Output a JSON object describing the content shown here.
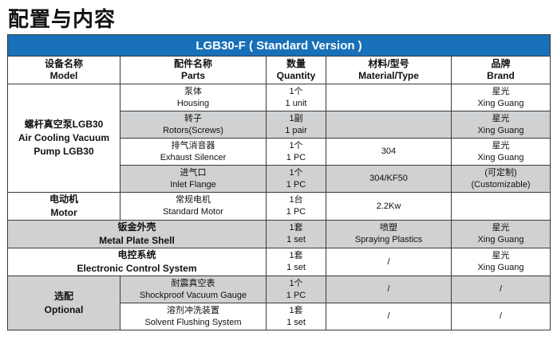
{
  "heading": "配置与内容",
  "table_title": "LGB30-F ( Standard Version )",
  "headers": {
    "model": [
      "设备名称",
      "Model"
    ],
    "parts": [
      "配件名称",
      "Parts"
    ],
    "quantity": [
      "数量",
      "Quantity"
    ],
    "material": [
      "材料/型号",
      "Material/Type"
    ],
    "brand": [
      "品牌",
      "Brand"
    ]
  },
  "pump_group": {
    "model": [
      "螺杆真空泵LGB30",
      "Air Cooling Vacuum",
      "Pump LGB30"
    ],
    "rows": [
      {
        "part": [
          "泵体",
          "Housing"
        ],
        "qty": [
          "1个",
          "1 unit"
        ],
        "material": "",
        "brand": [
          "星光",
          "Xing Guang"
        ]
      },
      {
        "part": [
          "转子",
          "Rotors(Screws)"
        ],
        "qty": [
          "1副",
          "1 pair"
        ],
        "material": "",
        "brand": [
          "星光",
          "Xing Guang"
        ]
      },
      {
        "part": [
          "排气消音器",
          "Exhaust Silencer"
        ],
        "qty": [
          "1个",
          "1 PC"
        ],
        "material": "304",
        "brand": [
          "星光",
          "Xing Guang"
        ]
      },
      {
        "part": [
          "进气口",
          "Inlet Flange"
        ],
        "qty": [
          "1个",
          "1 PC"
        ],
        "material": "304/KF50",
        "brand": [
          "(可定制)",
          "(Customizable)"
        ]
      }
    ]
  },
  "motor_row": {
    "model": [
      "电动机",
      "Motor"
    ],
    "part": [
      "常规电机",
      "Standard Motor"
    ],
    "qty": [
      "1台",
      "1 PC"
    ],
    "material": "2.2Kw",
    "brand": ""
  },
  "shell_row": {
    "name": [
      "钣金外壳",
      "Metal Plate Shell"
    ],
    "qty": [
      "1套",
      "1 set"
    ],
    "material": [
      "喷塑",
      "Spraying Plastics"
    ],
    "brand": [
      "星光",
      "Xing Guang"
    ]
  },
  "control_row": {
    "name": [
      "电控系统",
      "Electronic Control System"
    ],
    "qty": [
      "1套",
      "1 set"
    ],
    "material": "/",
    "brand": [
      "星光",
      "Xing Guang"
    ]
  },
  "optional_group": {
    "model": [
      "选配",
      "Optional"
    ],
    "rows": [
      {
        "part": [
          "耐震真空表",
          "Shockproof Vacuum Gauge"
        ],
        "qty": [
          "1个",
          "1 PC"
        ],
        "material": "/",
        "brand": "/"
      },
      {
        "part": [
          "溶剂冲洗装置",
          "Solvent Flushing System"
        ],
        "qty": [
          "1套",
          "1 set"
        ],
        "material": "/",
        "brand": "/"
      }
    ]
  }
}
